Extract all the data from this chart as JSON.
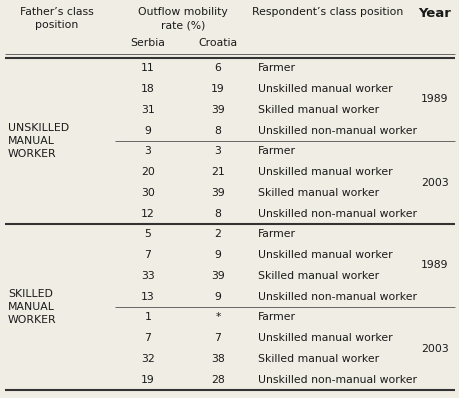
{
  "col0_header": "Father’s class\nposition",
  "col12_header": "Outflow mobility\nrate (%)",
  "col3_header": "Respondent’s class position",
  "col4_header": "Year",
  "sub1": "Serbia",
  "sub2": "Croatia",
  "rows": [
    [
      "11",
      "6",
      "Farmer"
    ],
    [
      "18",
      "19",
      "Unskilled manual worker"
    ],
    [
      "31",
      "39",
      "Skilled manual worker"
    ],
    [
      "9",
      "8",
      "Unskilled non-manual worker"
    ],
    [
      "3",
      "3",
      "Farmer"
    ],
    [
      "20",
      "21",
      "Unskilled manual worker"
    ],
    [
      "30",
      "39",
      "Skilled manual worker"
    ],
    [
      "12",
      "8",
      "Unskilled non-manual worker"
    ],
    [
      "5",
      "2",
      "Farmer"
    ],
    [
      "7",
      "9",
      "Unskilled manual worker"
    ],
    [
      "33",
      "39",
      "Skilled manual worker"
    ],
    [
      "13",
      "9",
      "Unskilled non-manual worker"
    ],
    [
      "1",
      "*",
      "Farmer"
    ],
    [
      "7",
      "7",
      "Unskilled manual worker"
    ],
    [
      "32",
      "38",
      "Skilled manual worker"
    ],
    [
      "19",
      "28",
      "Unskilled non-manual worker"
    ]
  ],
  "year_groups": [
    [
      0,
      3,
      "1989"
    ],
    [
      4,
      7,
      "2003"
    ],
    [
      8,
      11,
      "1989"
    ],
    [
      12,
      15,
      "2003"
    ]
  ],
  "father_groups": [
    [
      0,
      7,
      "UNSKILLED\nMANUAL\nWORKER"
    ],
    [
      8,
      15,
      "SKILLED\nMANUAL\nWORKER"
    ]
  ],
  "thin_sep_before_rows": [
    4,
    12
  ],
  "thick_sep_before_rows": [
    8
  ],
  "bg_color": "#f0ede4",
  "text_color": "#1a1a1a",
  "line_color": "#666666",
  "thick_line_color": "#333333",
  "font_size": 7.8,
  "year_font_size": 9.5,
  "header_font_size": 7.8
}
